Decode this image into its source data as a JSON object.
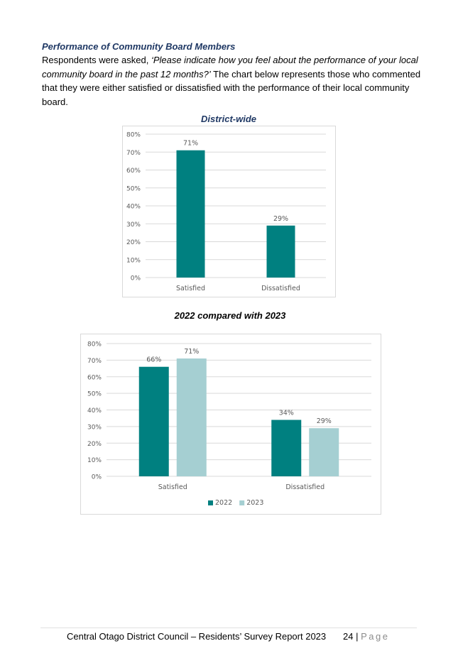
{
  "section": {
    "heading": "Performance of Community Board Members",
    "intro_lead": "Respondents were asked, ",
    "intro_quote": "‘Please indicate how you feel about the performance of your local community board in the past 12 months?’",
    "intro_rest": " The chart below represents those who commented that they were either satisfied or dissatisfied with the performance of their local community board."
  },
  "chart_data": [
    {
      "type": "bar",
      "title": "District-wide",
      "categories": [
        "Satisfied",
        "Dissatisfied"
      ],
      "series": [
        {
          "values": [
            71,
            29
          ],
          "color": "#008080"
        }
      ],
      "data_labels": [
        "71%",
        "29%"
      ],
      "y_ticks": [
        "0%",
        "10%",
        "20%",
        "30%",
        "40%",
        "50%",
        "60%",
        "70%",
        "80%"
      ],
      "ylim": [
        0,
        80
      ],
      "unit": "%",
      "grid": true,
      "legend": "none"
    },
    {
      "type": "bar",
      "title": "2022 compared with 2023",
      "categories": [
        "Satisfied",
        "Dissatisfied"
      ],
      "series": [
        {
          "name": "2022",
          "values": [
            66,
            34
          ],
          "color": "#008080",
          "labels": [
            "66%",
            "34%"
          ]
        },
        {
          "name": "2023",
          "values": [
            71,
            29
          ],
          "color": "#a5cfd2",
          "labels": [
            "71%",
            "29%"
          ]
        }
      ],
      "y_ticks": [
        "0%",
        "10%",
        "20%",
        "30%",
        "40%",
        "50%",
        "60%",
        "70%",
        "80%"
      ],
      "ylim": [
        0,
        80
      ],
      "unit": "%",
      "grid": true,
      "legend": "bottom"
    }
  ],
  "footer": {
    "document": "Central Otago District Council – Residents’ Survey Report 2023",
    "page_number": "24",
    "separator": " | ",
    "page_label": "Page"
  }
}
